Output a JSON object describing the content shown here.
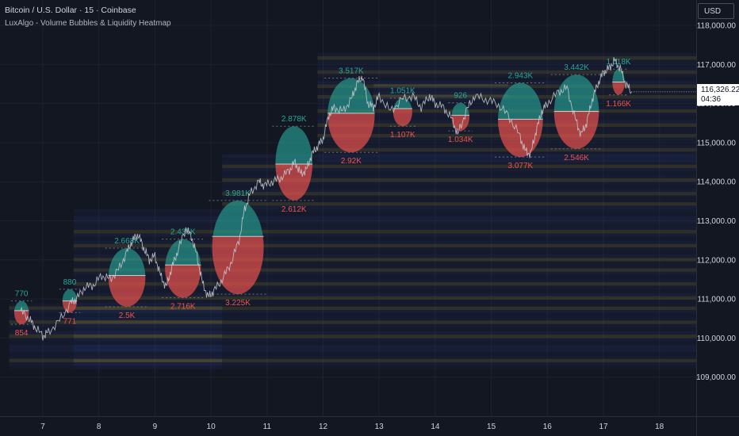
{
  "header": {
    "title": "Bitcoin / U.S. Dollar · 15 · Coinbase",
    "indicator": "LuxAlgo - Volume Bubbles & Liquidity Heatmap",
    "currency": "USD"
  },
  "price_tag": {
    "price": "116,326.22",
    "countdown": "04:36"
  },
  "colors": {
    "background": "#131722",
    "buy": "#26a69a",
    "sell": "#ef5350",
    "grid": "#1e222d",
    "price_line": "#c9ccd4"
  },
  "chart_data": {
    "type": "line",
    "ylim": [
      108000,
      118000
    ],
    "xlim": [
      6.4,
      18.7
    ],
    "y_ticks": [
      {
        "v": 118000,
        "label": "118,000.00"
      },
      {
        "v": 117000,
        "label": "117,000.00"
      },
      {
        "v": 116000,
        "label": "116,000.00"
      },
      {
        "v": 115000,
        "label": "115,000.00"
      },
      {
        "v": 114000,
        "label": "114,000.00"
      },
      {
        "v": 113000,
        "label": "113,000.00"
      },
      {
        "v": 112000,
        "label": "112,000.00"
      },
      {
        "v": 111000,
        "label": "111,000.00"
      },
      {
        "v": 110000,
        "label": "110,000.00"
      },
      {
        "v": 109000,
        "label": "109,000.00"
      }
    ],
    "x_ticks": [
      {
        "v": 7,
        "label": "7"
      },
      {
        "v": 8,
        "label": "8"
      },
      {
        "v": 9,
        "label": "9"
      },
      {
        "v": 10,
        "label": "10"
      },
      {
        "v": 11,
        "label": "11"
      },
      {
        "v": 12,
        "label": "12"
      },
      {
        "v": 13,
        "label": "13"
      },
      {
        "v": 14,
        "label": "14"
      },
      {
        "v": 15,
        "label": "15"
      },
      {
        "v": 16,
        "label": "16"
      },
      {
        "v": 17,
        "label": "17"
      },
      {
        "v": 18,
        "label": "18"
      }
    ],
    "price_series": [
      [
        6.6,
        110700
      ],
      [
        6.75,
        110500
      ],
      [
        6.85,
        110300
      ],
      [
        7.0,
        110050
      ],
      [
        7.1,
        110150
      ],
      [
        7.3,
        110450
      ],
      [
        7.5,
        110900
      ],
      [
        7.6,
        111000
      ],
      [
        7.75,
        111300
      ],
      [
        7.9,
        111350
      ],
      [
        8.05,
        111600
      ],
      [
        8.2,
        111500
      ],
      [
        8.35,
        111750
      ],
      [
        8.5,
        112200
      ],
      [
        8.6,
        112500
      ],
      [
        8.7,
        112650
      ],
      [
        8.8,
        112300
      ],
      [
        8.9,
        112000
      ],
      [
        9.0,
        112100
      ],
      [
        9.1,
        111600
      ],
      [
        9.2,
        111300
      ],
      [
        9.3,
        111800
      ],
      [
        9.4,
        112200
      ],
      [
        9.55,
        112800
      ],
      [
        9.65,
        112600
      ],
      [
        9.75,
        112100
      ],
      [
        9.85,
        111400
      ],
      [
        9.95,
        111050
      ],
      [
        10.05,
        111200
      ],
      [
        10.2,
        111500
      ],
      [
        10.35,
        111900
      ],
      [
        10.5,
        112500
      ],
      [
        10.6,
        113300
      ],
      [
        10.7,
        113700
      ],
      [
        10.85,
        114000
      ],
      [
        10.95,
        113900
      ],
      [
        11.1,
        114000
      ],
      [
        11.25,
        114100
      ],
      [
        11.4,
        114300
      ],
      [
        11.5,
        114500
      ],
      [
        11.6,
        114200
      ],
      [
        11.7,
        114300
      ],
      [
        11.8,
        114700
      ],
      [
        11.9,
        114900
      ],
      [
        12.0,
        115100
      ],
      [
        12.1,
        115700
      ],
      [
        12.2,
        115900
      ],
      [
        12.35,
        115800
      ],
      [
        12.5,
        116100
      ],
      [
        12.6,
        116500
      ],
      [
        12.7,
        116700
      ],
      [
        12.8,
        116000
      ],
      [
        12.9,
        115900
      ],
      [
        13.0,
        116200
      ],
      [
        13.2,
        115800
      ],
      [
        13.4,
        116100
      ],
      [
        13.6,
        116200
      ],
      [
        13.75,
        115900
      ],
      [
        13.9,
        116200
      ],
      [
        14.0,
        116000
      ],
      [
        14.15,
        115900
      ],
      [
        14.3,
        115600
      ],
      [
        14.4,
        115200
      ],
      [
        14.55,
        115800
      ],
      [
        14.7,
        116200
      ],
      [
        14.9,
        116100
      ],
      [
        15.1,
        116000
      ],
      [
        15.3,
        115700
      ],
      [
        15.5,
        115200
      ],
      [
        15.6,
        114800
      ],
      [
        15.7,
        114700
      ],
      [
        15.8,
        115300
      ],
      [
        15.9,
        115800
      ],
      [
        16.0,
        116000
      ],
      [
        16.2,
        116300
      ],
      [
        16.35,
        116400
      ],
      [
        16.5,
        115600
      ],
      [
        16.6,
        115200
      ],
      [
        16.7,
        115500
      ],
      [
        16.8,
        116100
      ],
      [
        16.9,
        116500
      ],
      [
        17.0,
        116800
      ],
      [
        17.1,
        116900
      ],
      [
        17.2,
        117100
      ],
      [
        17.3,
        116900
      ],
      [
        17.4,
        116500
      ],
      [
        17.5,
        116300
      ]
    ],
    "bubbles": [
      {
        "cx": 6.62,
        "cy": 110650,
        "rx": 0.13,
        "ry_frac": 0.3,
        "split": 110700,
        "buy": "770",
        "sell": "854"
      },
      {
        "cx": 7.48,
        "cy": 110950,
        "rx": 0.13,
        "ry_frac": 0.3,
        "split": 110950,
        "buy": "880",
        "sell": "771"
      },
      {
        "cx": 8.5,
        "cy": 111550,
        "rx": 0.33,
        "ry_frac": 0.75,
        "split": 111600,
        "buy": "2.668K",
        "sell": "2.5K"
      },
      {
        "cx": 9.5,
        "cy": 111780,
        "rx": 0.32,
        "ry_frac": 0.75,
        "split": 111870,
        "buy": "2.435K",
        "sell": "2.716K"
      },
      {
        "cx": 10.48,
        "cy": 112320,
        "rx": 0.46,
        "ry_frac": 1.2,
        "split": 112600,
        "buy": "3.981K",
        "sell": "3.225K"
      },
      {
        "cx": 11.48,
        "cy": 114470,
        "rx": 0.33,
        "ry_frac": 0.95,
        "split": 114450,
        "buy": "2.878K",
        "sell": "2.612K"
      },
      {
        "cx": 12.5,
        "cy": 115700,
        "rx": 0.42,
        "ry_frac": 0.95,
        "split": 115750,
        "buy": "3.517K",
        "sell": "2.92K"
      },
      {
        "cx": 13.42,
        "cy": 115780,
        "rx": 0.17,
        "ry_frac": 0.36,
        "split": 115870,
        "buy": "1.051K",
        "sell": "1.107K"
      },
      {
        "cx": 14.45,
        "cy": 115660,
        "rx": 0.16,
        "ry_frac": 0.36,
        "split": 115700,
        "buy": "926",
        "sell": "1.034K"
      },
      {
        "cx": 15.52,
        "cy": 115580,
        "rx": 0.4,
        "ry_frac": 0.95,
        "split": 115600,
        "buy": "2.943K",
        "sell": "3.077K"
      },
      {
        "cx": 16.52,
        "cy": 115790,
        "rx": 0.4,
        "ry_frac": 0.95,
        "split": 115800,
        "buy": "3.442K",
        "sell": "2.546K"
      },
      {
        "cx": 17.27,
        "cy": 116550,
        "rx": 0.11,
        "ry_frac": 0.33,
        "split": 116550,
        "buy": "1.118K",
        "sell": "1.166K"
      }
    ],
    "liquidity_zones": [
      {
        "from": 7.55,
        "to": 18.7,
        "lo": 109200,
        "hi": 113300
      },
      {
        "from": 6.4,
        "to": 10.2,
        "lo": 109200,
        "hi": 110900
      },
      {
        "from": 10.2,
        "to": 18.7,
        "lo": 113300,
        "hi": 114700
      },
      {
        "from": 11.9,
        "to": 18.7,
        "lo": 114500,
        "hi": 117300
      },
      {
        "from": 12.9,
        "to": 15.3,
        "lo": 116100,
        "hi": 116500
      }
    ]
  }
}
